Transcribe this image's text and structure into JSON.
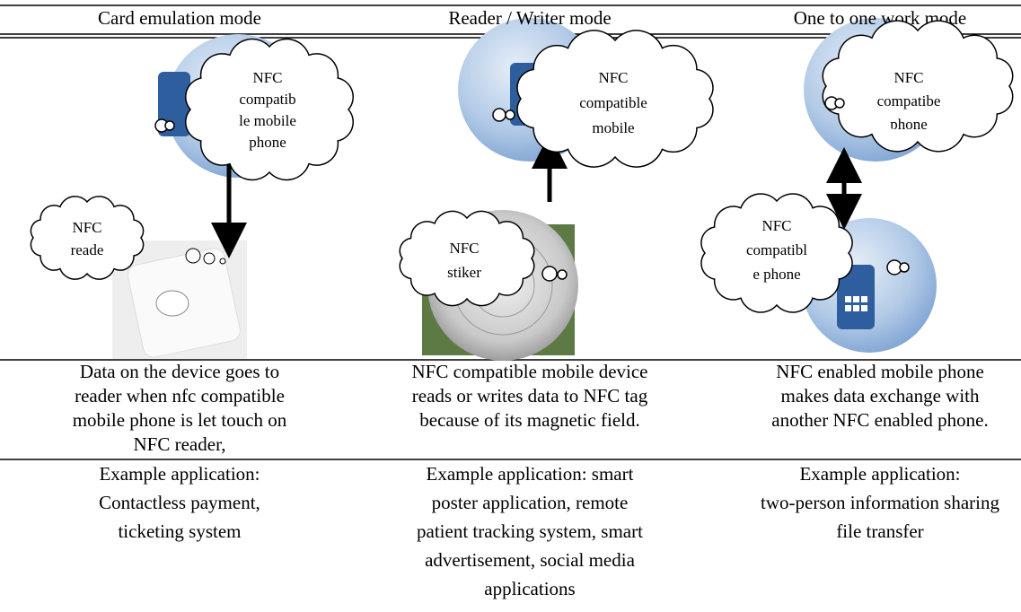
{
  "headers": [
    "Card emulation mode",
    "Reader / Writer mode",
    "One to one work mode"
  ],
  "diagrams": [
    {
      "clouds": [
        {
          "lines": [
            "NFC",
            "compatib",
            "le mobile",
            "phone"
          ]
        },
        {
          "lines": [
            "NFC",
            "reade"
          ]
        }
      ]
    },
    {
      "clouds": [
        {
          "lines": [
            "NFC",
            "compatible",
            "mobile"
          ]
        },
        {
          "lines": [
            "NFC",
            "stiker"
          ]
        }
      ]
    },
    {
      "clouds": [
        {
          "lines": [
            "NFC",
            "compatibe",
            "phone"
          ]
        },
        {
          "lines": [
            "NFC",
            "compatibl",
            "e phone"
          ]
        }
      ]
    }
  ],
  "descriptions": [
    [
      "Data on the device goes to",
      "reader when nfc compatible",
      "mobile phone is let touch on",
      "NFC reader,"
    ],
    [
      "NFC compatible mobile device",
      "reads or writes data to NFC tag",
      "because of its magnetic field."
    ],
    [
      "NFC enabled mobile phone",
      "makes data exchange with",
      "another NFC enabled phone."
    ]
  ],
  "examples": [
    [
      "Example application:",
      "Contactless payment,",
      "ticketing system"
    ],
    [
      "Example application: smart",
      "poster application, remote",
      "patient tracking system, smart",
      "advertisement, social media",
      "applications"
    ],
    [
      "Example application:",
      "two-person information sharing",
      "file transfer"
    ]
  ]
}
